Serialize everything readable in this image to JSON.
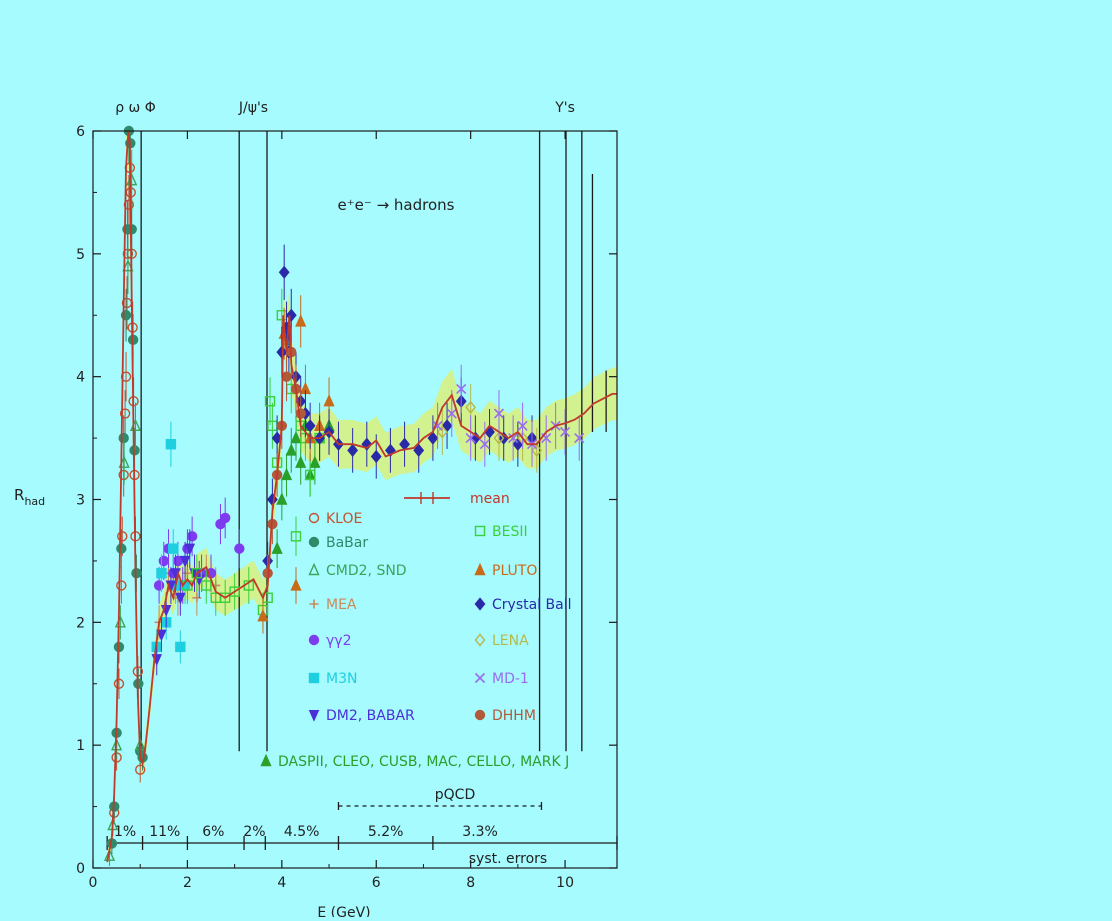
{
  "colors": {
    "background": "#a6fbff",
    "axis": "#1a1a1a",
    "mean": "#c0392b",
    "band": "#d8f07a",
    "kloe": "#c0522e",
    "babar": "#2e8a6a",
    "cmd2": "#3aa55a",
    "mea": "#c98a5a",
    "gg2": "#7d3cf0",
    "m3n": "#1ecfe0",
    "dm2": "#4b2fd8",
    "daspii": "#2aa02a",
    "besii": "#3ad03a",
    "pluto": "#c86a18",
    "crystal_ball": "#2a2aa8",
    "lena": "#b8b84a",
    "md1": "#9a6cf0",
    "dhhm": "#b05a3a"
  },
  "chart_data": {
    "type": "scatter",
    "title": "e⁺e⁻ → hadrons",
    "xlabel": "E (GeV)",
    "ylabel": "R",
    "ylabel_sub": "had",
    "xlim": [
      0,
      11.1
    ],
    "ylim": [
      0,
      6
    ],
    "x_ticks": [
      "0",
      "2",
      "4",
      "6",
      "8",
      "10"
    ],
    "y_ticks": [
      "0",
      "1",
      "2",
      "3",
      "4",
      "5",
      "6"
    ],
    "resonance_labels": [
      {
        "text": "ρ ω Φ",
        "x": 0.9
      },
      {
        "text": "J/ψ's",
        "x": 3.4
      },
      {
        "text": "Υ's",
        "x": 10.0
      }
    ],
    "resonance_lines": [
      {
        "x": 1.02,
        "top": 6.0
      },
      {
        "x": 3.097,
        "top": 6.0
      },
      {
        "x": 3.686,
        "top": 6.0
      },
      {
        "x": 9.46,
        "top": 6.0
      },
      {
        "x": 10.02,
        "top": 6.0
      },
      {
        "x": 10.355,
        "top": 6.0
      }
    ],
    "upsilon_peaks": [
      {
        "x": 10.58,
        "top": 5.65
      },
      {
        "x": 10.87,
        "top": 4.05
      }
    ],
    "mean": {
      "x": [
        0.3,
        0.4,
        0.45,
        0.5,
        0.55,
        0.6,
        0.65,
        0.7,
        0.75,
        0.78,
        0.8,
        0.85,
        0.9,
        0.95,
        1.0,
        1.05,
        1.1,
        1.2,
        1.3,
        1.4,
        1.5,
        1.6,
        1.7,
        1.8,
        1.9,
        2.0,
        2.1,
        2.2,
        2.4,
        2.6,
        2.8,
        3.0,
        3.2,
        3.4,
        3.6,
        3.7,
        3.8,
        3.9,
        4.0,
        4.03,
        4.1,
        4.16,
        4.2,
        4.3,
        4.4,
        4.5,
        4.6,
        4.8,
        5.0,
        5.2,
        5.5,
        5.8,
        6.0,
        6.2,
        6.5,
        6.8,
        7.0,
        7.2,
        7.4,
        7.6,
        7.8,
        8.0,
        8.2,
        8.4,
        8.6,
        8.8,
        9.0,
        9.2,
        9.4,
        9.6,
        9.8,
        10.0,
        10.2,
        10.4,
        10.6,
        10.8,
        11.0,
        11.1
      ],
      "y": [
        0.05,
        0.25,
        0.6,
        1.2,
        2.1,
        3.3,
        4.6,
        5.7,
        6.0,
        5.9,
        5.2,
        3.8,
        2.4,
        1.4,
        0.9,
        0.85,
        0.95,
        1.3,
        1.7,
        2.0,
        2.1,
        2.3,
        2.2,
        2.4,
        2.3,
        2.35,
        2.3,
        2.4,
        2.45,
        2.25,
        2.2,
        2.25,
        2.3,
        2.35,
        2.2,
        2.3,
        2.9,
        3.2,
        3.6,
        4.5,
        4.2,
        4.5,
        4.1,
        3.9,
        3.6,
        3.55,
        3.5,
        3.5,
        3.55,
        3.45,
        3.45,
        3.42,
        3.48,
        3.35,
        3.4,
        3.42,
        3.5,
        3.55,
        3.75,
        3.85,
        3.6,
        3.55,
        3.5,
        3.6,
        3.55,
        3.5,
        3.55,
        3.45,
        3.45,
        3.55,
        3.6,
        3.62,
        3.65,
        3.7,
        3.78,
        3.82,
        3.86,
        3.86
      ]
    },
    "series": [
      {
        "name": "KLOE",
        "marker": "open-circle",
        "color_key": "kloe",
        "x": [
          0.45,
          0.5,
          0.55,
          0.6,
          0.62,
          0.65,
          0.68,
          0.7,
          0.72,
          0.74,
          0.76,
          0.78,
          0.8,
          0.82,
          0.84,
          0.86,
          0.88,
          0.9,
          0.95,
          1.0
        ],
        "y": [
          0.45,
          0.9,
          1.5,
          2.3,
          2.7,
          3.2,
          3.7,
          4.0,
          4.6,
          5.0,
          5.4,
          5.7,
          5.5,
          5.0,
          4.4,
          3.8,
          3.2,
          2.7,
          1.6,
          0.8
        ]
      },
      {
        "name": "BaBar",
        "marker": "dot",
        "color_key": "babar",
        "x": [
          0.4,
          0.45,
          0.5,
          0.55,
          0.6,
          0.65,
          0.7,
          0.73,
          0.76,
          0.79,
          0.82,
          0.85,
          0.88,
          0.92,
          0.96,
          1.0,
          1.05
        ],
        "y": [
          0.2,
          0.5,
          1.1,
          1.8,
          2.6,
          3.5,
          4.5,
          5.2,
          6.0,
          5.9,
          5.2,
          4.3,
          3.4,
          2.4,
          1.5,
          0.95,
          0.9
        ]
      },
      {
        "name": "CMD2, SND",
        "marker": "open-triangle",
        "color_key": "cmd2",
        "x": [
          0.35,
          0.42,
          0.5,
          0.58,
          0.66,
          0.74,
          0.82,
          0.9,
          1.0
        ],
        "y": [
          0.1,
          0.35,
          1.0,
          2.0,
          3.3,
          4.9,
          5.6,
          3.6,
          1.0
        ]
      },
      {
        "name": "MEA",
        "marker": "plus",
        "color_key": "mea",
        "x": [
          1.4,
          1.6,
          1.8,
          2.0,
          2.2,
          2.4,
          2.6
        ],
        "y": [
          2.0,
          2.4,
          2.2,
          2.4,
          2.2,
          2.4,
          2.3
        ]
      },
      {
        "name": "γγ2",
        "marker": "dot",
        "color_key": "gg2",
        "x": [
          1.4,
          1.5,
          1.6,
          1.7,
          1.8,
          1.9,
          2.0,
          2.1,
          2.3,
          2.5,
          2.7,
          2.8,
          3.1
        ],
        "y": [
          2.3,
          2.5,
          2.6,
          2.4,
          2.5,
          2.3,
          2.6,
          2.7,
          2.4,
          2.4,
          2.8,
          2.85,
          2.6
        ]
      },
      {
        "name": "M3N",
        "marker": "square",
        "color_key": "m3n",
        "x": [
          1.35,
          1.45,
          1.55,
          1.65,
          1.7,
          1.75,
          1.85,
          1.95
        ],
        "y": [
          1.8,
          2.4,
          2.0,
          3.45,
          2.6,
          2.3,
          1.8,
          2.3
        ]
      },
      {
        "name": "DM2,  BABAR",
        "marker": "down-triangle",
        "color_key": "dm2",
        "x": [
          1.35,
          1.45,
          1.55,
          1.65,
          1.75,
          1.85,
          1.95,
          2.05,
          2.15,
          2.25
        ],
        "y": [
          1.7,
          1.9,
          2.1,
          2.3,
          2.4,
          2.2,
          2.5,
          2.6,
          2.4,
          2.35
        ]
      },
      {
        "name": "DASPII, CLEO, CUSB, MAC, CELLO, MARK J",
        "marker": "triangle",
        "color_key": "daspii",
        "x": [
          3.9,
          4.0,
          4.1,
          4.2,
          4.3,
          4.4,
          4.5,
          4.6,
          4.7,
          4.8,
          5.0
        ],
        "y": [
          2.6,
          3.0,
          3.2,
          3.4,
          3.5,
          3.3,
          3.6,
          3.2,
          3.3,
          3.5,
          3.6
        ]
      },
      {
        "name": "BESII",
        "marker": "open-square",
        "color_key": "besii",
        "x": [
          2.0,
          2.2,
          2.4,
          2.6,
          2.8,
          3.0,
          3.3,
          3.6,
          3.7,
          3.75,
          3.8,
          3.9,
          4.0,
          4.1,
          4.2,
          4.3,
          4.4,
          4.5,
          4.6,
          4.8
        ],
        "y": [
          2.3,
          2.4,
          2.3,
          2.2,
          2.2,
          2.25,
          2.3,
          2.1,
          2.2,
          3.8,
          3.6,
          3.3,
          4.5,
          4.3,
          3.9,
          2.7,
          3.6,
          3.5,
          3.2,
          3.5
        ]
      },
      {
        "name": "PLUTO",
        "marker": "triangle",
        "color_key": "pluto",
        "x": [
          3.6,
          4.05,
          4.3,
          4.4,
          4.5,
          4.6,
          4.8,
          5.0
        ],
        "y": [
          2.05,
          4.35,
          2.3,
          4.45,
          3.9,
          3.5,
          3.6,
          3.8
        ]
      },
      {
        "name": "Crystal Ball",
        "marker": "diamond",
        "color_key": "crystal_ball",
        "x": [
          3.7,
          3.8,
          3.9,
          4.0,
          4.05,
          4.1,
          4.15,
          4.2,
          4.3,
          4.4,
          4.5,
          4.6,
          4.8,
          5.0,
          5.2,
          5.5,
          5.8,
          6.0,
          6.3,
          6.6,
          6.9,
          7.2,
          7.5,
          7.8,
          8.1,
          8.4,
          8.7,
          9.0,
          9.3
        ],
        "y": [
          2.5,
          3.0,
          3.5,
          4.2,
          4.85,
          4.4,
          4.2,
          4.5,
          4.0,
          3.8,
          3.7,
          3.6,
          3.5,
          3.55,
          3.45,
          3.4,
          3.45,
          3.35,
          3.4,
          3.45,
          3.4,
          3.5,
          3.6,
          3.8,
          3.5,
          3.55,
          3.5,
          3.45,
          3.5
        ]
      },
      {
        "name": "LENA",
        "marker": "open-diamond",
        "color_key": "lena",
        "x": [
          7.4,
          8.0,
          8.6,
          9.1,
          9.4
        ],
        "y": [
          3.55,
          3.75,
          3.5,
          3.5,
          3.4
        ]
      },
      {
        "name": "MD-1",
        "marker": "cross",
        "color_key": "md1",
        "x": [
          7.3,
          7.6,
          7.8,
          8.0,
          8.3,
          8.6,
          8.9,
          9.1,
          9.3,
          9.6,
          9.8,
          10.0,
          10.3
        ],
        "y": [
          3.6,
          3.7,
          3.9,
          3.5,
          3.45,
          3.7,
          3.5,
          3.6,
          3.45,
          3.5,
          3.6,
          3.55,
          3.5
        ]
      },
      {
        "name": "DHHM",
        "marker": "dot",
        "color_key": "dhhm",
        "x": [
          3.7,
          3.8,
          3.9,
          4.0,
          4.1,
          4.2,
          4.3,
          4.4
        ],
        "y": [
          2.4,
          2.8,
          3.2,
          3.6,
          4.0,
          4.2,
          3.9,
          3.7
        ]
      }
    ],
    "legend_mean_label": "mean",
    "pqcd_label": "pQCD",
    "pqcd_range": [
      5.2,
      9.5
    ],
    "syst_errors_label": "syst. errors",
    "syst_dividers": [
      0.3,
      1.05,
      2.0,
      3.2,
      3.65,
      5.2,
      7.2,
      11.1
    ],
    "syst_labels": [
      {
        "text": "1%",
        "x": 0.68
      },
      {
        "text": "11%",
        "x": 1.52
      },
      {
        "text": "6%",
        "x": 2.55
      },
      {
        "text": "2%",
        "x": 3.42
      },
      {
        "text": "4.5%",
        "x": 4.42
      },
      {
        "text": "5.2%",
        "x": 6.2
      },
      {
        "text": "3.3%",
        "x": 8.2
      }
    ]
  }
}
